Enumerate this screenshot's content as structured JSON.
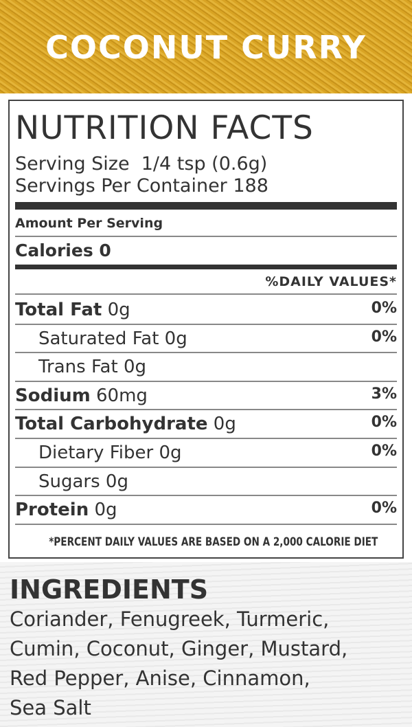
{
  "header": {
    "title": "COCONUT CURRY"
  },
  "nutrition": {
    "title": "NUTRITION FACTS",
    "serving_size": "Serving Size  1/4 tsp (0.6g)",
    "servings_per_container": "Servings Per Container 188",
    "amount_per_serving": "Amount Per Serving",
    "calories": "Calories 0",
    "daily_values_header": "%DAILY VALUES*",
    "rows": [
      {
        "label": "Total Fat",
        "amount": "0g",
        "dv": "0%",
        "sub": [
          {
            "label": "Saturated Fat",
            "amount": "0g",
            "dv": "0%"
          },
          {
            "label": "Trans Fat",
            "amount": "0g"
          }
        ]
      },
      {
        "label": "Sodium",
        "amount": "60mg",
        "dv": "3%"
      },
      {
        "label": "Total Carbohydrate",
        "amount": "0g",
        "dv": "0%",
        "sub": [
          {
            "label": "Dietary Fiber",
            "amount": "0g",
            "dv": "0%"
          },
          {
            "label": "Sugars",
            "amount": "0g"
          }
        ]
      },
      {
        "label": "Protein",
        "amount": "0g",
        "dv": "0%"
      }
    ],
    "footnote": "*PERCENT DAILY VALUES ARE BASED ON A 2,000 CALORIE DIET"
  },
  "ingredients": {
    "title": "INGREDIENTS",
    "lines": [
      "Coriander, Fenugreek, Turmeric,",
      "Cumin, Coconut, Ginger, Mustard,",
      "Red Pepper, Anise, Cinnamon,",
      "Sea Salt"
    ]
  }
}
